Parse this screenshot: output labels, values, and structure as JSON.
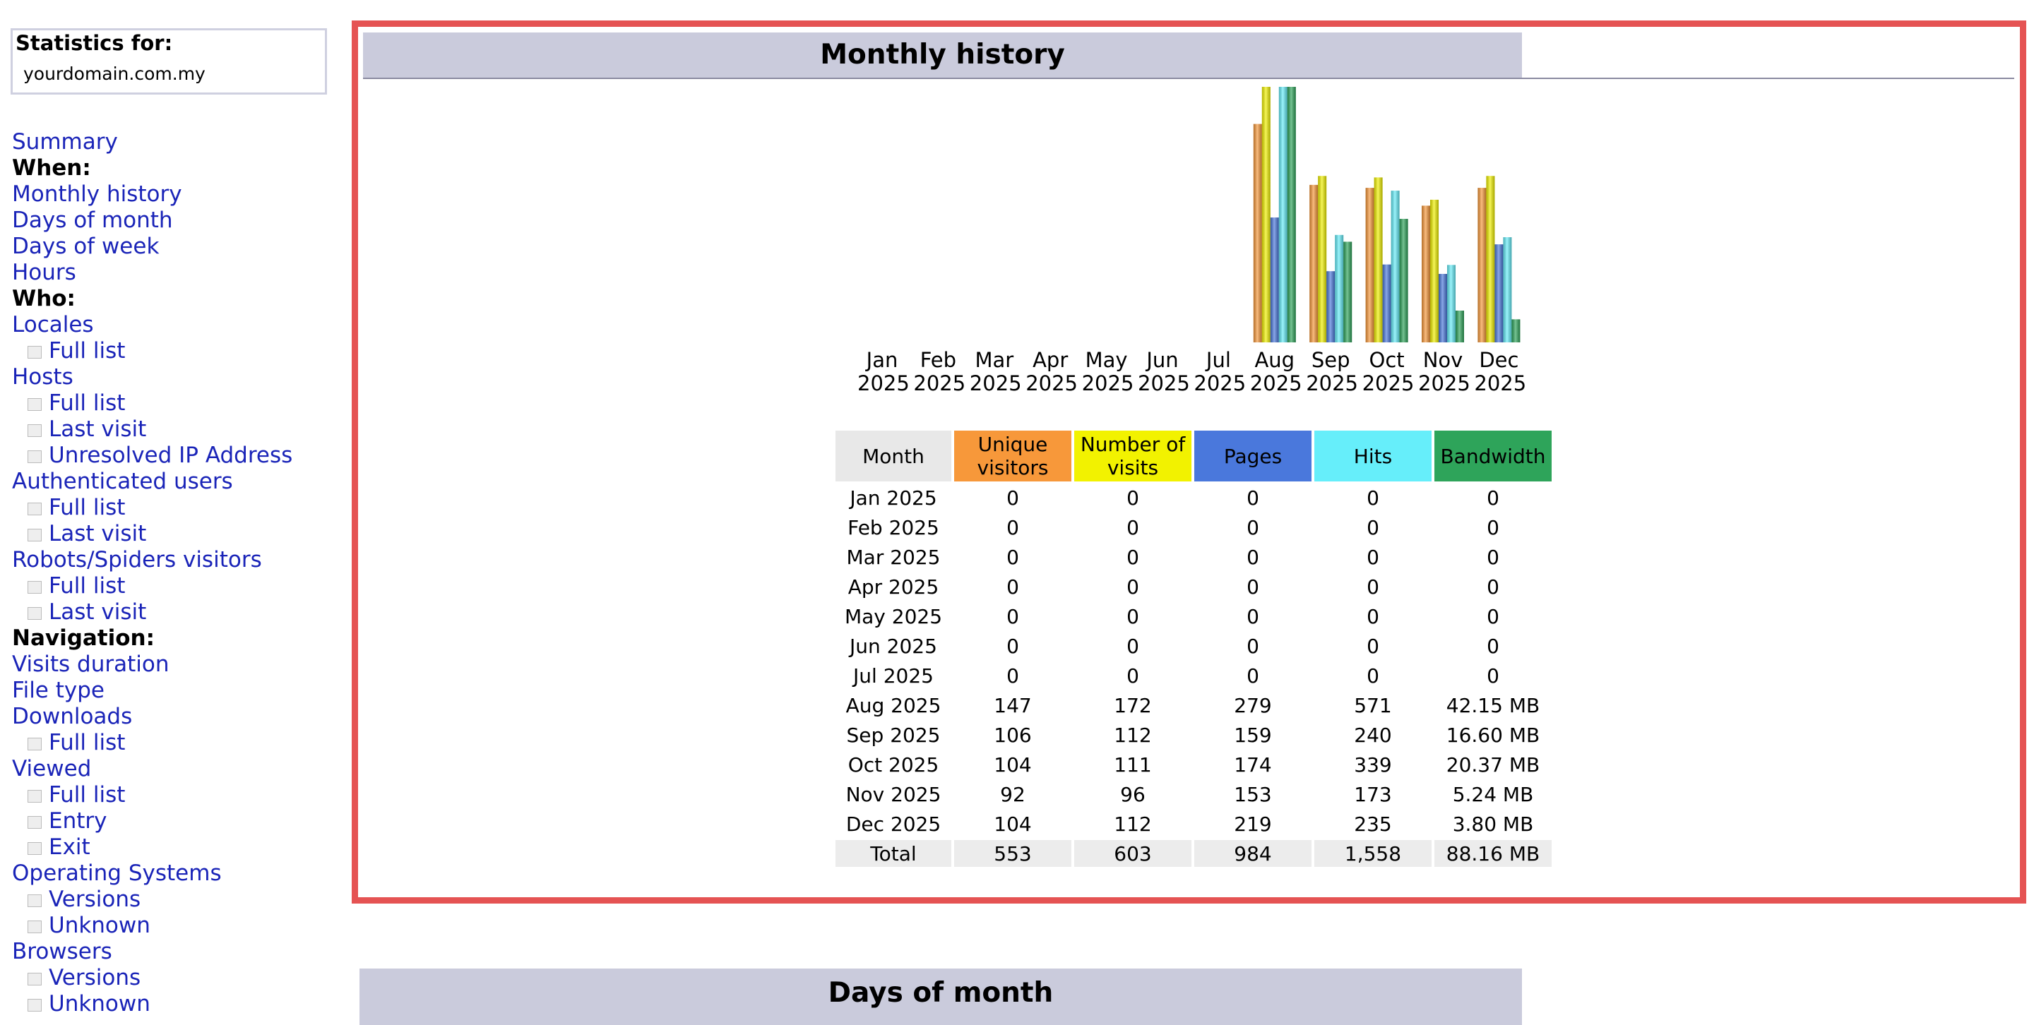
{
  "sidebar": {
    "title": "Statistics for:",
    "domain": "yourdomain.com.my",
    "items": [
      {
        "label": "Summary",
        "kind": "link"
      },
      {
        "label": "When:",
        "kind": "heading"
      },
      {
        "label": "Monthly history",
        "kind": "link"
      },
      {
        "label": "Days of month",
        "kind": "link"
      },
      {
        "label": "Days of week",
        "kind": "link"
      },
      {
        "label": "Hours",
        "kind": "link"
      },
      {
        "label": "Who:",
        "kind": "heading"
      },
      {
        "label": "Locales",
        "kind": "link"
      },
      {
        "label": "Full list",
        "kind": "sub"
      },
      {
        "label": "Hosts",
        "kind": "link"
      },
      {
        "label": "Full list",
        "kind": "sub"
      },
      {
        "label": "Last visit",
        "kind": "sub"
      },
      {
        "label": "Unresolved IP Address",
        "kind": "sub"
      },
      {
        "label": "Authenticated users",
        "kind": "link"
      },
      {
        "label": "Full list",
        "kind": "sub"
      },
      {
        "label": "Last visit",
        "kind": "sub"
      },
      {
        "label": "Robots/Spiders visitors",
        "kind": "link"
      },
      {
        "label": "Full list",
        "kind": "sub"
      },
      {
        "label": "Last visit",
        "kind": "sub"
      },
      {
        "label": "Navigation:",
        "kind": "heading"
      },
      {
        "label": "Visits duration",
        "kind": "link"
      },
      {
        "label": "File type",
        "kind": "link"
      },
      {
        "label": "Downloads",
        "kind": "link"
      },
      {
        "label": "Full list",
        "kind": "sub"
      },
      {
        "label": "Viewed",
        "kind": "link"
      },
      {
        "label": "Full list",
        "kind": "sub"
      },
      {
        "label": "Entry",
        "kind": "sub"
      },
      {
        "label": "Exit",
        "kind": "sub"
      },
      {
        "label": "Operating Systems",
        "kind": "link"
      },
      {
        "label": "Versions",
        "kind": "sub"
      },
      {
        "label": "Unknown",
        "kind": "sub"
      },
      {
        "label": "Browsers",
        "kind": "link"
      },
      {
        "label": "Versions",
        "kind": "sub"
      },
      {
        "label": "Unknown",
        "kind": "sub"
      }
    ]
  },
  "section_title": "Monthly history",
  "chart_data": {
    "type": "bar",
    "categories": [
      "Jan 2025",
      "Feb 2025",
      "Mar 2025",
      "Apr 2025",
      "May 2025",
      "Jun 2025",
      "Jul 2025",
      "Aug 2025",
      "Sep 2025",
      "Oct 2025",
      "Nov 2025",
      "Dec 2025"
    ],
    "series": [
      {
        "name": "Unique visitors",
        "color": "#f7983a",
        "values": [
          0,
          0,
          0,
          0,
          0,
          0,
          0,
          147,
          106,
          104,
          92,
          104
        ]
      },
      {
        "name": "Number of visits",
        "color": "#f2f200",
        "values": [
          0,
          0,
          0,
          0,
          0,
          0,
          0,
          172,
          112,
          111,
          96,
          112
        ]
      },
      {
        "name": "Pages",
        "color": "#4a78dc",
        "values": [
          0,
          0,
          0,
          0,
          0,
          0,
          0,
          279,
          159,
          174,
          153,
          219
        ]
      },
      {
        "name": "Hits",
        "color": "#66eefa",
        "values": [
          0,
          0,
          0,
          0,
          0,
          0,
          0,
          571,
          240,
          339,
          173,
          235
        ]
      },
      {
        "name": "Bandwidth",
        "color": "#2ea45a",
        "values": [
          0,
          0,
          0,
          0,
          0,
          0,
          0,
          42.15,
          16.6,
          20.37,
          5.24,
          3.8
        ],
        "value_labels": [
          "0",
          "0",
          "0",
          "0",
          "0",
          "0",
          "0",
          "42.15 MB",
          "16.60 MB",
          "20.37 MB",
          "5.24 MB",
          "3.80 MB"
        ]
      }
    ],
    "table_header": "Month",
    "total_label": "Total",
    "totals": [
      553,
      603,
      984,
      {
        "value": 1558,
        "label": "1,558"
      },
      {
        "value": 88.16,
        "label": "88.16 MB"
      }
    ]
  },
  "next_section_title": "Days of month"
}
